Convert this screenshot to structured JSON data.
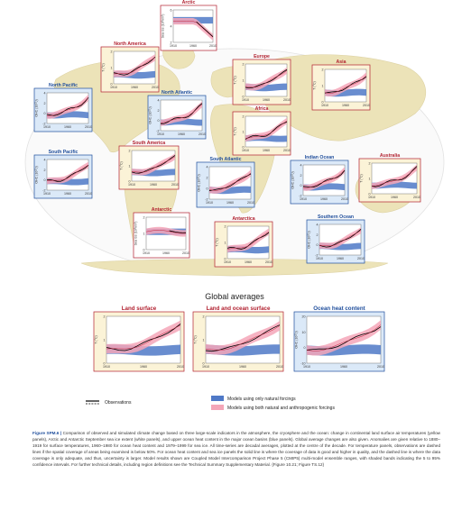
{
  "colors": {
    "land_panel": "#fbf3d7",
    "ice_panel": "#ffffff",
    "ocean_panel": "#dbe9f8",
    "map_land": "#ece3b8",
    "map_ocean": "#ffffff",
    "natural_band": "#4f79c7",
    "anthro_band": "#f4a6b8",
    "obs_line": "#000000",
    "model_line_red": "#c0203a",
    "title_red": "#b11f2e",
    "title_blue": "#1f4e9c"
  },
  "x_ticks": [
    "1910",
    "1960",
    "2010"
  ],
  "panels": [
    {
      "id": "arctic",
      "title": "Arctic",
      "kind": "ice",
      "ylabel": "Sea ice (10⁶km²)",
      "yticks": [
        "6",
        "4",
        "2"
      ],
      "title_color": "red"
    },
    {
      "id": "north-america",
      "title": "North America",
      "kind": "land",
      "ylabel": "T (°C)",
      "yticks": [
        "2",
        "1",
        "0"
      ],
      "title_color": "red"
    },
    {
      "id": "europe",
      "title": "Europe",
      "kind": "land",
      "ylabel": "T (°C)",
      "yticks": [
        "2",
        "1",
        "0"
      ],
      "title_color": "red"
    },
    {
      "id": "asia",
      "title": "Asia",
      "kind": "land",
      "ylabel": "T (°C)",
      "yticks": [
        "2",
        "1",
        "0"
      ],
      "title_color": "red"
    },
    {
      "id": "north-pacific",
      "title": "North Pacific",
      "kind": "ocean",
      "ylabel": "OHC (10²²J)",
      "yticks": [
        "4",
        "2",
        "0",
        "-2"
      ],
      "title_color": "blue"
    },
    {
      "id": "north-atlantic",
      "title": "North Atlantic",
      "kind": "ocean",
      "ylabel": "OHC (10²²J)",
      "yticks": [
        "4",
        "2",
        "0",
        "-2"
      ],
      "title_color": "blue"
    },
    {
      "id": "africa",
      "title": "Africa",
      "kind": "land",
      "ylabel": "T (°C)",
      "yticks": [
        "2",
        "1",
        "0"
      ],
      "title_color": "red"
    },
    {
      "id": "south-pacific",
      "title": "South Pacific",
      "kind": "ocean",
      "ylabel": "OHC (10²²J)",
      "yticks": [
        "4",
        "2",
        "0",
        "-2"
      ],
      "title_color": "blue"
    },
    {
      "id": "south-america",
      "title": "South America",
      "kind": "land",
      "ylabel": "T (°C)",
      "yticks": [
        "2",
        "1",
        "0"
      ],
      "title_color": "red"
    },
    {
      "id": "south-atlantic",
      "title": "South Atlantic",
      "kind": "ocean",
      "ylabel": "OHC (10²²J)",
      "yticks": [
        "4",
        "2",
        "0",
        "-2"
      ],
      "title_color": "blue"
    },
    {
      "id": "indian-ocean",
      "title": "Indian Ocean",
      "kind": "ocean",
      "ylabel": "OHC (10²²J)",
      "yticks": [
        "4",
        "2",
        "0",
        "-2"
      ],
      "title_color": "blue"
    },
    {
      "id": "australia",
      "title": "Australia",
      "kind": "land",
      "ylabel": "T (°C)",
      "yticks": [
        "2",
        "1",
        "0"
      ],
      "title_color": "red"
    },
    {
      "id": "antarctic",
      "title": "Antarctic",
      "kind": "ice",
      "ylabel": "Sea ice (10⁶km²)",
      "yticks": [
        "2",
        "1",
        "0"
      ],
      "title_color": "red"
    },
    {
      "id": "antarctica",
      "title": "Antarctica",
      "kind": "land",
      "ylabel": "T (°C)",
      "yticks": [
        "2",
        "1",
        "0"
      ],
      "title_color": "red"
    },
    {
      "id": "southern-ocean",
      "title": "Southern Ocean",
      "kind": "ocean",
      "ylabel": "OHC (10²²J)",
      "yticks": [
        "4",
        "2",
        "0",
        "-2"
      ],
      "title_color": "blue"
    }
  ],
  "global": {
    "title": "Global averages",
    "panels": [
      {
        "id": "land-surface",
        "title": "Land surface",
        "kind": "land",
        "ylabel": "T (°C)",
        "yticks": [
          "2",
          "1",
          "0"
        ],
        "title_color": "red"
      },
      {
        "id": "land-ocean-surface",
        "title": "Land and ocean surface",
        "kind": "land",
        "ylabel": "T (°C)",
        "yticks": [
          "2",
          "1",
          "0"
        ],
        "title_color": "red"
      },
      {
        "id": "ocean-heat-content",
        "title": "Ocean heat content",
        "kind": "ocean",
        "ylabel": "OHC (10²²J)",
        "yticks": [
          "20",
          "10",
          "0",
          "-10"
        ],
        "title_color": "blue"
      }
    ]
  },
  "legend": {
    "observations": "Observations",
    "natural": "Models using only natural forcings",
    "anthro": "Models using both natural and anthropogenic forcings"
  },
  "caption": {
    "lead": "Figure SPM.6 |",
    "text": "Comparison of observed and simulated climate change based on three large-scale indicators in the atmosphere, the cryosphere and the ocean: change in continental land surface air temperatures (yellow panels), Arctic and Antarctic September sea ice extent (white panels), and upper ocean heat content in the major ocean basins (blue panels). Global average changes are also given. Anomalies are given relative to 1880–1919 for surface temperatures, 1960–1980 for ocean heat content and 1979–1999 for sea ice. All time-series are decadal averages, plotted at the centre of the decade. For temperature panels, observations are dashed lines if the spatial coverage of areas being examined is below 50%. For ocean heat content and sea ice panels the solid line is where the coverage of data is good and higher in quality, and the dashed line is where the data coverage is only adequate, and thus, uncertainty is larger. Model results shown are Coupled Model Intercomparison Project Phase 5 (CMIP5) multi-model ensemble ranges, with shaded bands indicating the 5 to 95% confidence intervals. For further technical details, including region definitions see the Technical Summary Supplementary Material. {Figure 10.21; Figure TS.12}"
  }
}
